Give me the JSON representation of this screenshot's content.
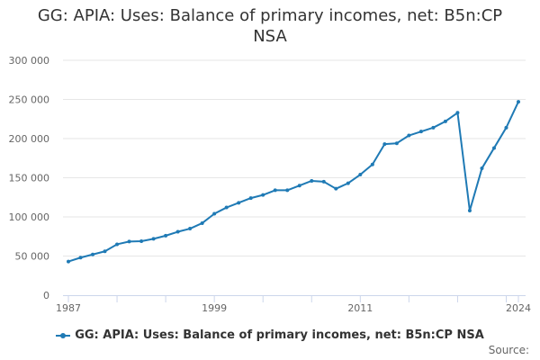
{
  "chart_data": {
    "type": "line",
    "title_lines": [
      "GG: APIA: Uses: Balance of primary incomes, net: B5n:CP",
      "NSA"
    ],
    "xlabel": "",
    "ylabel": "",
    "x_tick_labels": [
      "1987",
      "1999",
      "2011",
      "2024"
    ],
    "y_tick_labels": [
      "0",
      "50 000",
      "100 000",
      "150 000",
      "200 000",
      "250 000",
      "300 000"
    ],
    "ylim": [
      0,
      300000
    ],
    "xlim": [
      1987,
      2024
    ],
    "grid": true,
    "legend_position": "bottom",
    "color": "#1f7ab5",
    "series": [
      {
        "name": "GG: APIA: Uses: Balance of primary incomes, net: B5n:CP NSA",
        "x": [
          1987,
          1988,
          1989,
          1990,
          1991,
          1992,
          1993,
          1994,
          1995,
          1996,
          1997,
          1998,
          1999,
          2000,
          2001,
          2002,
          2003,
          2004,
          2005,
          2006,
          2007,
          2008,
          2009,
          2010,
          2011,
          2012,
          2013,
          2014,
          2015,
          2016,
          2017,
          2018,
          2019,
          2020,
          2021,
          2022,
          2023,
          2024
        ],
        "values": [
          43000,
          48000,
          52000,
          56000,
          65000,
          68500,
          69000,
          72000,
          76000,
          81000,
          85000,
          92000,
          104000,
          112000,
          118000,
          124000,
          128000,
          134000,
          134000,
          140000,
          146000,
          145000,
          136000,
          143000,
          154000,
          167000,
          193000,
          194000,
          204000,
          209000,
          214000,
          222000,
          233000,
          108000,
          162000,
          188000,
          214000,
          247000
        ]
      }
    ]
  },
  "credits": "Source:"
}
